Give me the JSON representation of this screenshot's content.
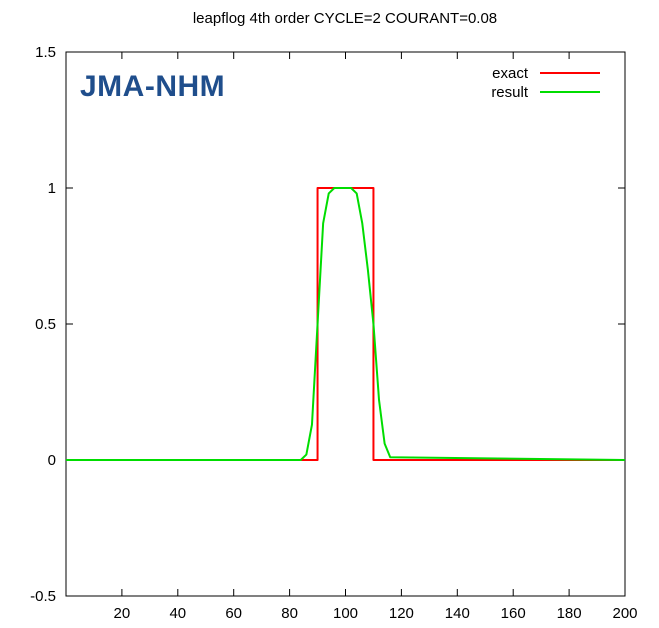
{
  "overlay_label": "JMA-NHM",
  "colors": {
    "exact": "#ff0000",
    "result": "#00dd00",
    "axis": "#000000",
    "label": "#1f4e8c"
  },
  "chart_data": {
    "type": "line",
    "title": "leapflog 4th order CYCLE=2 COURANT=0.08",
    "xlabel": "",
    "ylabel": "",
    "xlim": [
      0,
      200
    ],
    "ylim": [
      -0.5,
      1.5
    ],
    "xticks": [
      20,
      40,
      60,
      80,
      100,
      120,
      140,
      160,
      180,
      200
    ],
    "xtick_labels": [
      "20",
      "40",
      "60",
      "80",
      "100",
      "120",
      "140",
      "160",
      "180",
      "200"
    ],
    "yticks": [
      -0.5,
      0,
      0.5,
      1,
      1.5
    ],
    "ytick_labels": [
      "-0.5",
      "0",
      "0.5",
      "1",
      "1.5"
    ],
    "grid": false,
    "legend": "top-right",
    "series": [
      {
        "name": "exact",
        "color": "#ff0000",
        "x": [
          0,
          90,
          90,
          110,
          110,
          200
        ],
        "y": [
          0,
          0,
          1,
          1,
          0,
          0
        ]
      },
      {
        "name": "result",
        "color": "#00dd00",
        "x": [
          0,
          84,
          86,
          88,
          90,
          92,
          94,
          96,
          98,
          100,
          102,
          104,
          106,
          108,
          110,
          112,
          114,
          116,
          200
        ],
        "y": [
          0,
          0,
          0.02,
          0.13,
          0.5,
          0.87,
          0.98,
          1.0,
          1.0,
          1.0,
          1.0,
          0.98,
          0.87,
          0.7,
          0.5,
          0.22,
          0.06,
          0.01,
          0
        ]
      }
    ]
  }
}
